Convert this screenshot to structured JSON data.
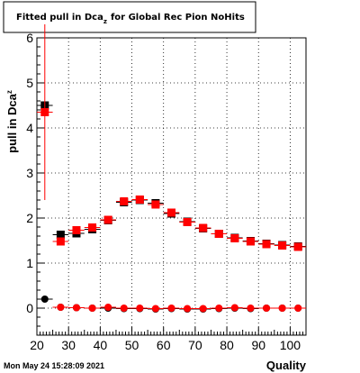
{
  "chart_data": {
    "type": "scatter",
    "title": "Fitted pull in Dca",
    "title_subscript": "z",
    "title_suffix": "for Global Rec Pion NoHits",
    "xlabel": "Quality",
    "ylabel": "pull in Dca",
    "ylabel_subscript": "z",
    "xlim": [
      20,
      105
    ],
    "ylim": [
      -0.6,
      6
    ],
    "grid": true,
    "x_ticks": [
      "20",
      "30",
      "40",
      "50",
      "60",
      "70",
      "80",
      "90",
      "100"
    ],
    "y_ticks": [
      "0",
      "1",
      "2",
      "3",
      "4",
      "5",
      "6"
    ],
    "series": [
      {
        "marker": "square",
        "color": "#000000",
        "points": [
          {
            "x": 22.5,
            "y": 4.5
          },
          {
            "x": 27.5,
            "y": 1.63
          },
          {
            "x": 32.5,
            "y": 1.66
          },
          {
            "x": 37.5,
            "y": 1.75
          },
          {
            "x": 42.5,
            "y": 1.95
          },
          {
            "x": 47.5,
            "y": 2.35
          },
          {
            "x": 52.5,
            "y": 2.4
          },
          {
            "x": 57.5,
            "y": 2.33
          },
          {
            "x": 62.5,
            "y": 2.1
          },
          {
            "x": 67.5,
            "y": 1.92
          },
          {
            "x": 72.5,
            "y": 1.77
          },
          {
            "x": 77.5,
            "y": 1.65
          },
          {
            "x": 82.5,
            "y": 1.56
          },
          {
            "x": 87.5,
            "y": 1.49
          },
          {
            "x": 92.5,
            "y": 1.43
          },
          {
            "x": 97.5,
            "y": 1.4
          },
          {
            "x": 102.5,
            "y": 1.37
          }
        ]
      },
      {
        "marker": "square",
        "color": "#ff0000",
        "points": [
          {
            "x": 22.5,
            "y": 4.35,
            "err": 1.95
          },
          {
            "x": 27.5,
            "y": 1.48
          },
          {
            "x": 32.5,
            "y": 1.73
          },
          {
            "x": 37.5,
            "y": 1.79
          },
          {
            "x": 42.5,
            "y": 1.96
          },
          {
            "x": 47.5,
            "y": 2.37
          },
          {
            "x": 52.5,
            "y": 2.41
          },
          {
            "x": 57.5,
            "y": 2.3
          },
          {
            "x": 62.5,
            "y": 2.12
          },
          {
            "x": 67.5,
            "y": 1.91
          },
          {
            "x": 72.5,
            "y": 1.78
          },
          {
            "x": 77.5,
            "y": 1.65
          },
          {
            "x": 82.5,
            "y": 1.55
          },
          {
            "x": 87.5,
            "y": 1.48
          },
          {
            "x": 92.5,
            "y": 1.42
          },
          {
            "x": 97.5,
            "y": 1.39
          },
          {
            "x": 102.5,
            "y": 1.36
          }
        ]
      },
      {
        "marker": "circle",
        "color": "#000000",
        "points": [
          {
            "x": 22.5,
            "y": 0.2
          },
          {
            "x": 27.5,
            "y": 0.02
          },
          {
            "x": 32.5,
            "y": 0.01
          },
          {
            "x": 37.5,
            "y": 0.0
          },
          {
            "x": 42.5,
            "y": 0.0
          },
          {
            "x": 47.5,
            "y": -0.01
          },
          {
            "x": 52.5,
            "y": -0.01
          },
          {
            "x": 57.5,
            "y": -0.02
          },
          {
            "x": 62.5,
            "y": -0.01
          },
          {
            "x": 67.5,
            "y": -0.02
          },
          {
            "x": 72.5,
            "y": -0.02
          },
          {
            "x": 77.5,
            "y": -0.01
          },
          {
            "x": 82.5,
            "y": 0.0
          },
          {
            "x": 87.5,
            "y": -0.01
          },
          {
            "x": 92.5,
            "y": 0.0
          },
          {
            "x": 97.5,
            "y": 0.0
          },
          {
            "x": 102.5,
            "y": 0.0
          }
        ]
      },
      {
        "marker": "circle",
        "color": "#ff0000",
        "points": [
          {
            "x": 27.5,
            "y": 0.02
          },
          {
            "x": 32.5,
            "y": 0.01
          },
          {
            "x": 37.5,
            "y": 0.0
          },
          {
            "x": 42.5,
            "y": 0.02
          },
          {
            "x": 47.5,
            "y": 0.0
          },
          {
            "x": 52.5,
            "y": 0.0
          },
          {
            "x": 57.5,
            "y": -0.01
          },
          {
            "x": 62.5,
            "y": 0.0
          },
          {
            "x": 67.5,
            "y": -0.01
          },
          {
            "x": 72.5,
            "y": -0.01
          },
          {
            "x": 77.5,
            "y": 0.0
          },
          {
            "x": 82.5,
            "y": 0.01
          },
          {
            "x": 87.5,
            "y": 0.0
          },
          {
            "x": 92.5,
            "y": 0.0
          },
          {
            "x": 97.5,
            "y": 0.0
          },
          {
            "x": 102.5,
            "y": 0.0
          }
        ]
      }
    ],
    "timestamp": "Mon May 24 15:28:09 2021"
  }
}
